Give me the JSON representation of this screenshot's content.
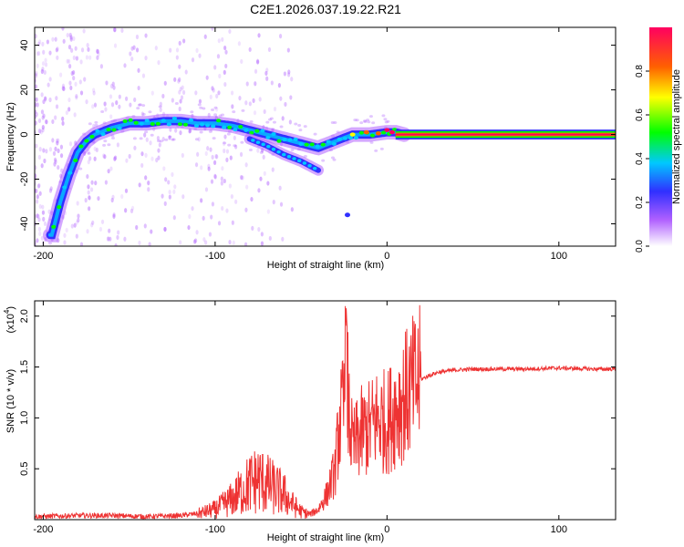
{
  "title": "C2E1.2026.037.19.22.R21",
  "chart_data": [
    {
      "type": "heatmap",
      "xlabel": "Height of straight line (km)",
      "ylabel": "Frequency (Hz)",
      "xlim": [
        -205,
        133
      ],
      "ylim": [
        -50,
        48
      ],
      "xticks": [
        -200,
        -100,
        0,
        100
      ],
      "yticks": [
        -40,
        -20,
        0,
        20,
        40
      ],
      "colorbar": {
        "label": "Normalized spectral amplitude",
        "range": [
          0,
          1
        ],
        "ticks": [
          "0.0",
          "0.2",
          "0.4",
          "0.6",
          "0.8"
        ],
        "colormap": [
          "#ffffff",
          "#b060ff",
          "#3030ff",
          "#00c8ff",
          "#00ff00",
          "#ffff00",
          "#ff6000",
          "#ff0060"
        ]
      },
      "ridge": {
        "x": [
          -195,
          -190,
          -185,
          -180,
          -175,
          -170,
          -160,
          -150,
          -140,
          -130,
          -120,
          -110,
          -100,
          -90,
          -80,
          -70,
          -60,
          -50,
          -40,
          -30,
          -20,
          -10,
          0,
          5,
          10,
          133
        ],
        "y": [
          -45,
          -30,
          -18,
          -8,
          -3,
          0,
          3,
          5,
          5,
          6,
          6,
          5,
          5,
          4,
          2,
          0,
          -2,
          -4,
          -6,
          -3,
          0,
          0,
          1,
          1,
          0,
          0
        ]
      },
      "lower_branch": {
        "x": [
          -80,
          -70,
          -60,
          -50,
          -45,
          -40
        ],
        "y": [
          -2,
          -5,
          -9,
          -12,
          -14,
          -16
        ]
      },
      "isolated_point": {
        "x": -23,
        "y": -36
      }
    },
    {
      "type": "line",
      "xlabel": "Height of straight line (km)",
      "ylabel": "SNR (10 * v/v)",
      "y_scale_note": "(x10",
      "y_scale_exp": "4",
      "xlim": [
        -205,
        133
      ],
      "ylim": [
        0,
        2.15
      ],
      "xticks": [
        -200,
        -100,
        0,
        100
      ],
      "yticks": [
        "0.5",
        "1.0",
        "1.5",
        "2.0"
      ],
      "color": "#ee3333",
      "series": [
        {
          "x": [
            -205,
            -180,
            -160,
            -140,
            -120,
            -110,
            -100,
            -95,
            -90,
            -85,
            -80,
            -75,
            -70,
            -65,
            -60,
            -55,
            -50,
            -45,
            -40,
            -35,
            -30,
            -28,
            -25,
            -23,
            -22,
            -20,
            -15,
            -10,
            -5,
            0,
            5,
            10,
            15,
            20,
            25,
            30,
            40,
            50,
            60,
            80,
            100,
            120,
            133
          ],
          "y": [
            0.03,
            0.04,
            0.04,
            0.03,
            0.04,
            0.06,
            0.1,
            0.15,
            0.2,
            0.28,
            0.35,
            0.4,
            0.35,
            0.3,
            0.25,
            0.15,
            0.08,
            0.05,
            0.1,
            0.25,
            0.5,
            0.9,
            1.1,
            1.3,
            1.0,
            0.7,
            0.85,
            0.9,
            1.0,
            0.95,
            1.1,
            1.2,
            1.3,
            1.38,
            1.42,
            1.45,
            1.47,
            1.48,
            1.48,
            1.48,
            1.49,
            1.48,
            1.48
          ]
        }
      ]
    }
  ]
}
